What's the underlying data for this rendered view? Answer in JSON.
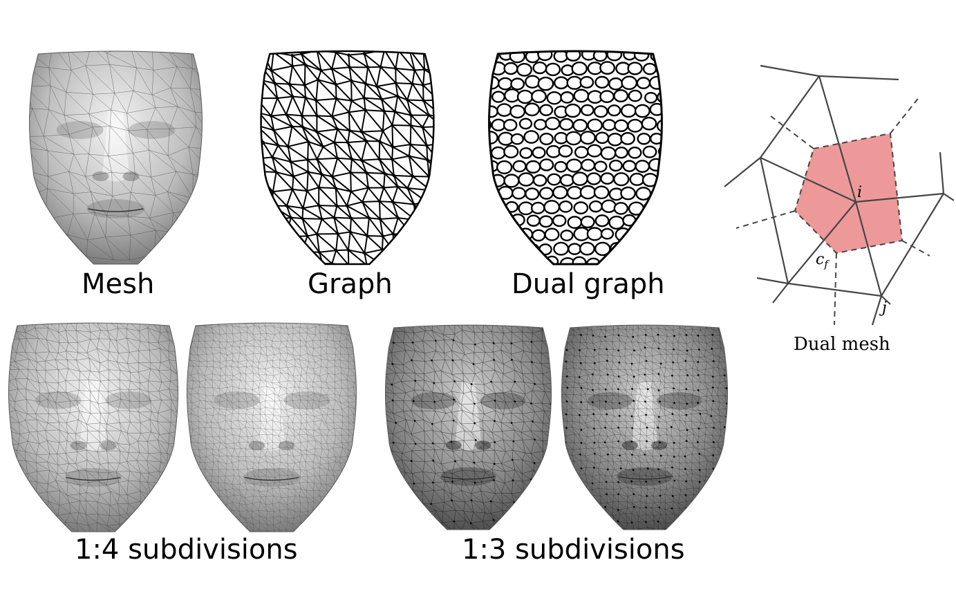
{
  "panels": [
    {
      "label": "Mesh",
      "style": "shaded",
      "density": 1
    },
    {
      "label": "Graph",
      "style": "wire",
      "density": 1
    },
    {
      "label": "Dual graph",
      "style": "dual",
      "density": 1
    },
    {
      "style": "shaded",
      "density": 2
    },
    {
      "style": "shaded",
      "density": 3
    },
    {
      "style": "shaded-dark",
      "density": 2
    },
    {
      "style": "shaded-dark",
      "density": 3
    }
  ],
  "captions": {
    "sub14": "1:4 subdivisions",
    "sub13": "1:3 subdivisions",
    "dual_mesh": "Dual mesh"
  },
  "dual_mesh_labels": {
    "i": "i",
    "cf": "c",
    "cf_sub": "f",
    "j": "j"
  },
  "colors": {
    "dual_cell_fill": "#ee9999",
    "edge": "#444444"
  }
}
